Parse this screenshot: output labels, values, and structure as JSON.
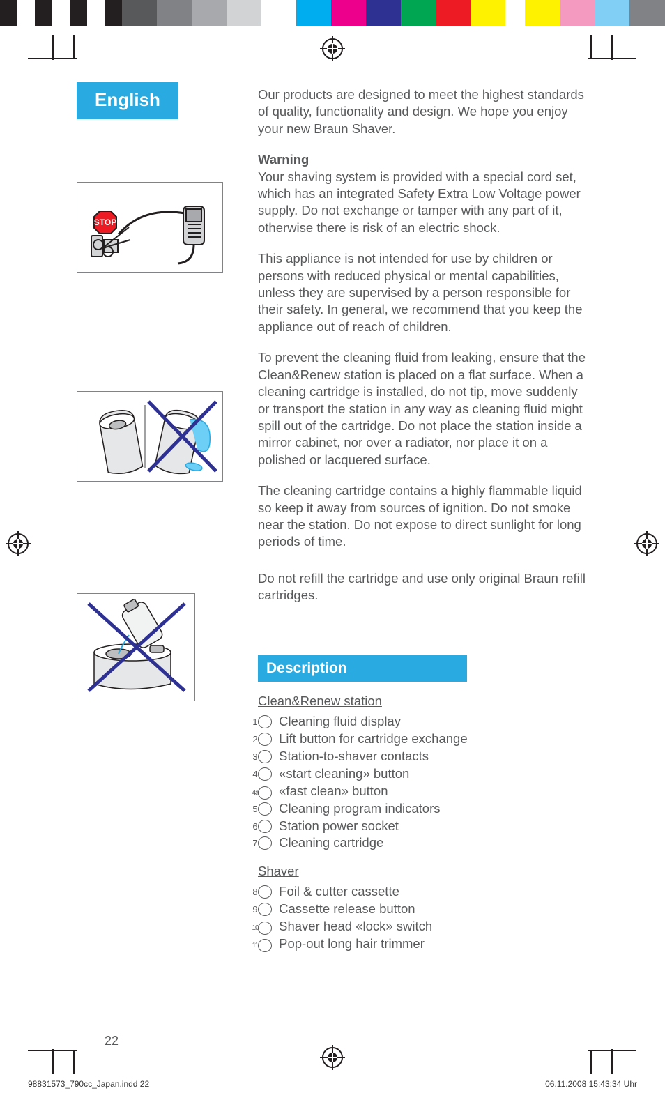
{
  "topbar_colors": [
    "#231f20",
    "#ffffff",
    "#231f20",
    "#ffffff",
    "#231f20",
    "#ffffff",
    "#231f20",
    "#58595b",
    "#808285",
    "#a7a9ac",
    "#d1d3d4",
    "#ffffff",
    "#00aeef",
    "#ec008c",
    "#2e3192",
    "#00a651",
    "#ed1c24",
    "#fff200",
    "#ffffff",
    "#fff200",
    "#f49ac1",
    "#82cff5",
    "#808285"
  ],
  "topbar_widths": [
    25,
    25,
    25,
    25,
    25,
    25,
    25,
    50,
    50,
    50,
    50,
    50,
    50,
    50,
    50,
    50,
    50,
    50,
    28,
    50,
    50,
    50,
    51
  ],
  "tab_label": "English",
  "intro": "Our products are designed to meet the highest standards of quality, functionality and design. We hope you enjoy your new Braun Shaver.",
  "warning_head": "Warning",
  "warning_p1": "Your shaving system is provided with a special cord set, which has an integrated Safety Extra Low Voltage power supply.  Do not exchange or tamper with any part of it, otherwise there is risk of an electric shock.",
  "warning_p2": "This appliance is not intended for use by children or persons with reduced physical or mental capabilities, unless they are supervised by a person responsible for their safety. In general, we recommend that you keep the appliance out of reach of children.",
  "warning_p3": "To prevent the cleaning fluid from leaking, ensure that the Clean&Renew station is placed on a flat surface.  When a cleaning cartridge is installed, do not tip, move suddenly or transport the station in any way as cleaning fluid might spill out of the cartridge. Do not place the station inside a mirror cabinet, nor over a radiator, nor place it on a polished or lacquered surface.",
  "warning_p4": "The cleaning cartridge contains a highly flammable liquid so keep it away from sources of ignition. Do not smoke near the station. Do not expose to direct sunlight for long periods of time.",
  "warning_p5": "Do not refill the cartridge and use only original Braun refill cartridges.",
  "description_head": "Description",
  "sub1": "Clean&Renew station",
  "list1": [
    {
      "n": "1",
      "t": "Cleaning fluid display"
    },
    {
      "n": "2",
      "t": "Lift button for cartridge exchange"
    },
    {
      "n": "3",
      "t": "Station-to-shaver contacts"
    },
    {
      "n": "4",
      "t": "«start cleaning» button"
    },
    {
      "n": "4a",
      "t": "«fast clean» button"
    },
    {
      "n": "5",
      "t": "Cleaning program indicators"
    },
    {
      "n": "6",
      "t": "Station power socket"
    },
    {
      "n": "7",
      "t": "Cleaning cartridge"
    }
  ],
  "sub2": "Shaver",
  "list2": [
    {
      "n": "8",
      "t": "Foil & cutter cassette"
    },
    {
      "n": "9",
      "t": "Cassette release button"
    },
    {
      "n": "10",
      "t": "Shaver head «lock» switch"
    },
    {
      "n": "11",
      "t": "Pop-out long hair trimmer"
    }
  ],
  "pagenum": "22",
  "footer_left": "98831573_790cc_Japan.indd   22",
  "footer_right": "06.11.2008   15:43:34 Uhr",
  "colors": {
    "blue": "#29abe2",
    "text": "#58595b",
    "border": "#808285",
    "xblue": "#2e3192"
  }
}
